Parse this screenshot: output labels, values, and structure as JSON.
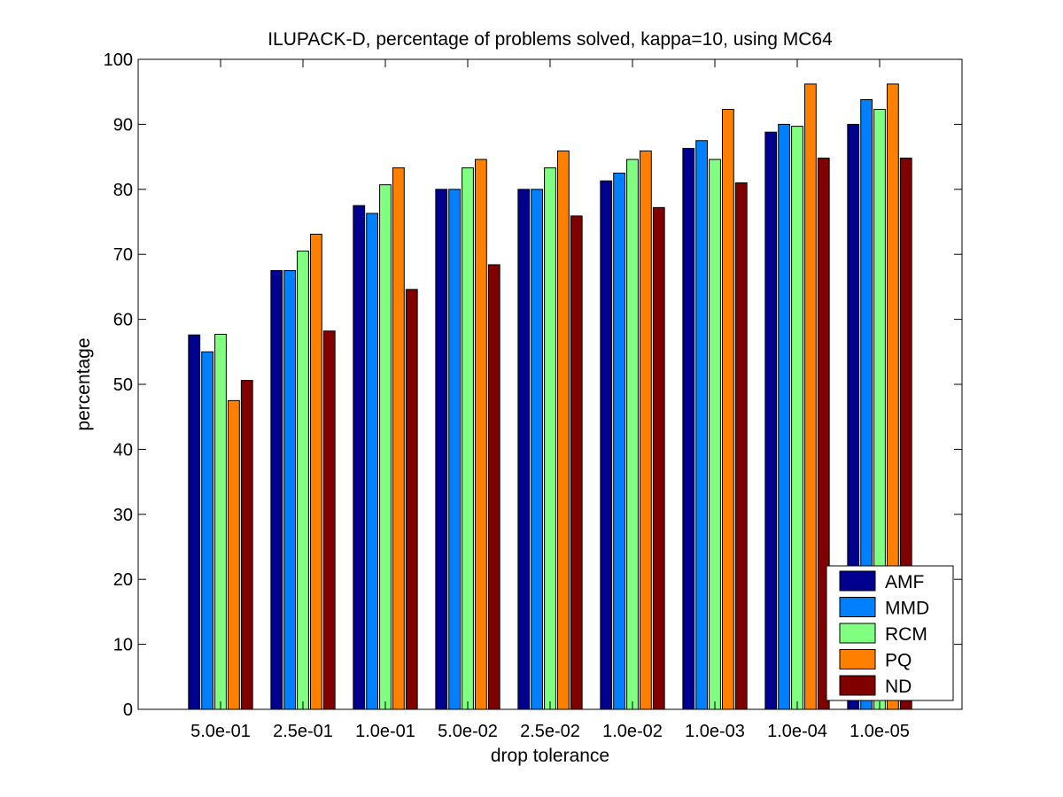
{
  "chart_data": {
    "type": "bar",
    "title": "ILUPACK-D, percentage of problems solved, kappa=10, using MC64",
    "xlabel": "drop tolerance",
    "ylabel": "percentage",
    "categories": [
      "5.0e-01",
      "2.5e-01",
      "1.0e-01",
      "5.0e-02",
      "2.5e-02",
      "1.0e-02",
      "1.0e-03",
      "1.0e-04",
      "1.0e-05"
    ],
    "ylim": [
      0,
      100
    ],
    "yticks": [
      0,
      10,
      20,
      30,
      40,
      50,
      60,
      70,
      80,
      90,
      100
    ],
    "grid": false,
    "legend_position": "bottom-right",
    "series": [
      {
        "name": "AMF",
        "color": "#00008f",
        "values": [
          57.6,
          67.5,
          77.5,
          80.0,
          80.0,
          81.3,
          86.3,
          88.8,
          90.0
        ]
      },
      {
        "name": "MMD",
        "color": "#0080ff",
        "values": [
          55.0,
          67.5,
          76.3,
          80.0,
          80.0,
          82.5,
          87.5,
          90.0,
          93.8
        ]
      },
      {
        "name": "RCM",
        "color": "#80ff80",
        "values": [
          57.7,
          70.5,
          80.7,
          83.3,
          83.3,
          84.6,
          84.6,
          89.7,
          92.3
        ]
      },
      {
        "name": "PQ",
        "color": "#ff8000",
        "values": [
          47.5,
          73.1,
          83.3,
          84.6,
          85.9,
          85.9,
          92.3,
          96.2,
          96.2
        ]
      },
      {
        "name": "ND",
        "color": "#800000",
        "values": [
          50.6,
          58.2,
          64.6,
          68.4,
          75.9,
          77.2,
          81.0,
          84.8,
          84.8
        ]
      }
    ]
  }
}
